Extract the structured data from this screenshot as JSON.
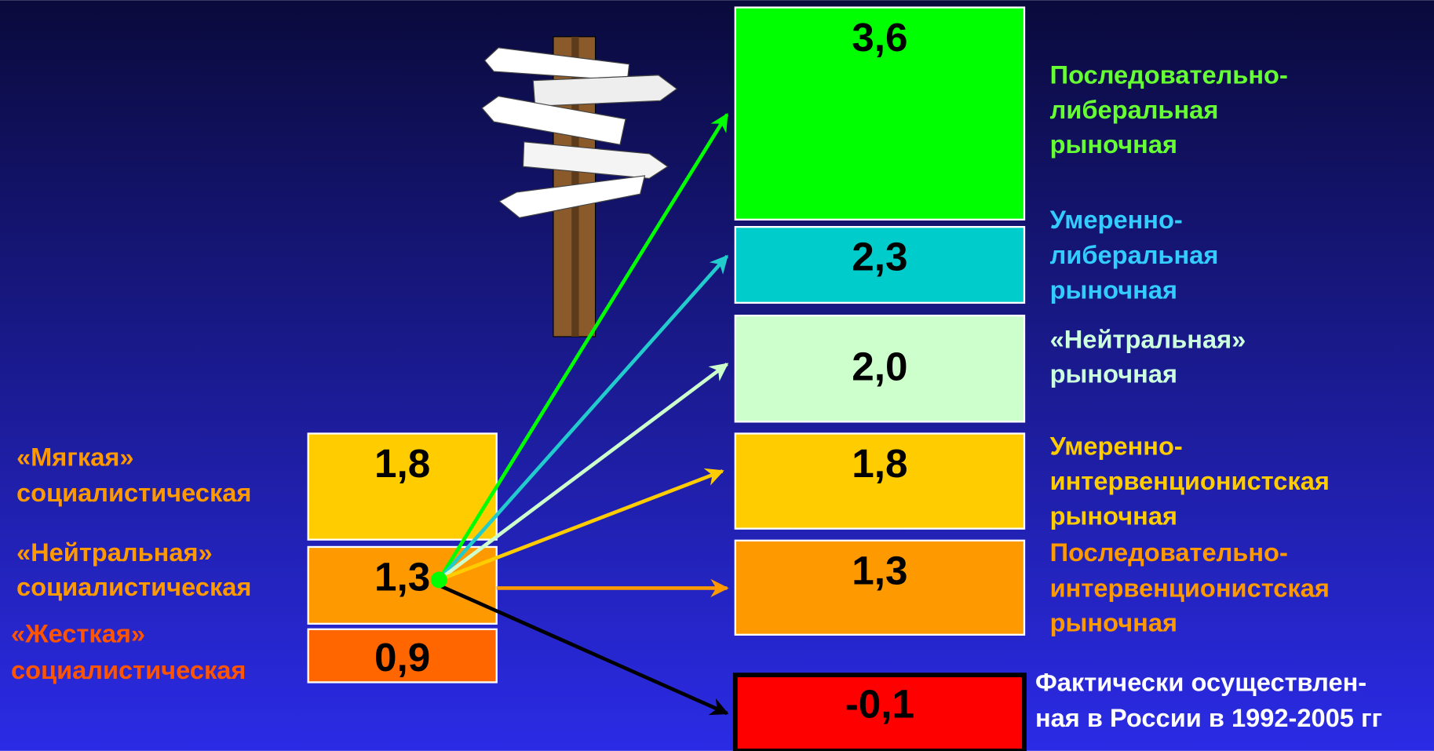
{
  "left": {
    "items": [
      {
        "value": "1,8",
        "color": "#ffcc00",
        "label_color": "#ff9900",
        "label_lines": [
          "«Мягкая»",
          "социалистическая"
        ]
      },
      {
        "value": "1,3",
        "color": "#ff9900",
        "label_color": "#ff9900",
        "label_lines": [
          "«Нейтральная»",
          "социалистическая"
        ]
      },
      {
        "value": "0,9",
        "color": "#ff6600",
        "label_color": "#ff5500",
        "label_lines": [
          "«Жесткая»",
          "социалистическая"
        ]
      }
    ]
  },
  "right": {
    "items": [
      {
        "value": "3,6",
        "color": "#00ff00",
        "label_color": "#66ff33",
        "label_lines": [
          "Последовательно-",
          "либеральная",
          "рыночная"
        ]
      },
      {
        "value": "2,3",
        "color": "#00cccc",
        "label_color": "#33ccff",
        "label_lines": [
          "Умеренно-",
          "либеральная",
          "рыночная"
        ]
      },
      {
        "value": "2,0",
        "color": "#ccffcc",
        "label_color": "#ccffdd",
        "label_lines": [
          "«Нейтральная»",
          "рыночная"
        ]
      },
      {
        "value": "1,8",
        "color": "#ffcc00",
        "label_color": "#ffcc00",
        "label_lines": [
          "Умеренно-",
          "интервенционистская",
          "рыночная"
        ]
      },
      {
        "value": "1,3",
        "color": "#ff9900",
        "label_color": "#ff9900",
        "label_lines": [
          "Последовательно-",
          "интервенционистская",
          "рыночная"
        ]
      },
      {
        "value": "-0,1",
        "color": "#ff0000",
        "label_color": "#ffffff",
        "label_lines": [
          "Фактически осуществлен-",
          "ная в России в 1992-2005 гг"
        ]
      }
    ]
  }
}
